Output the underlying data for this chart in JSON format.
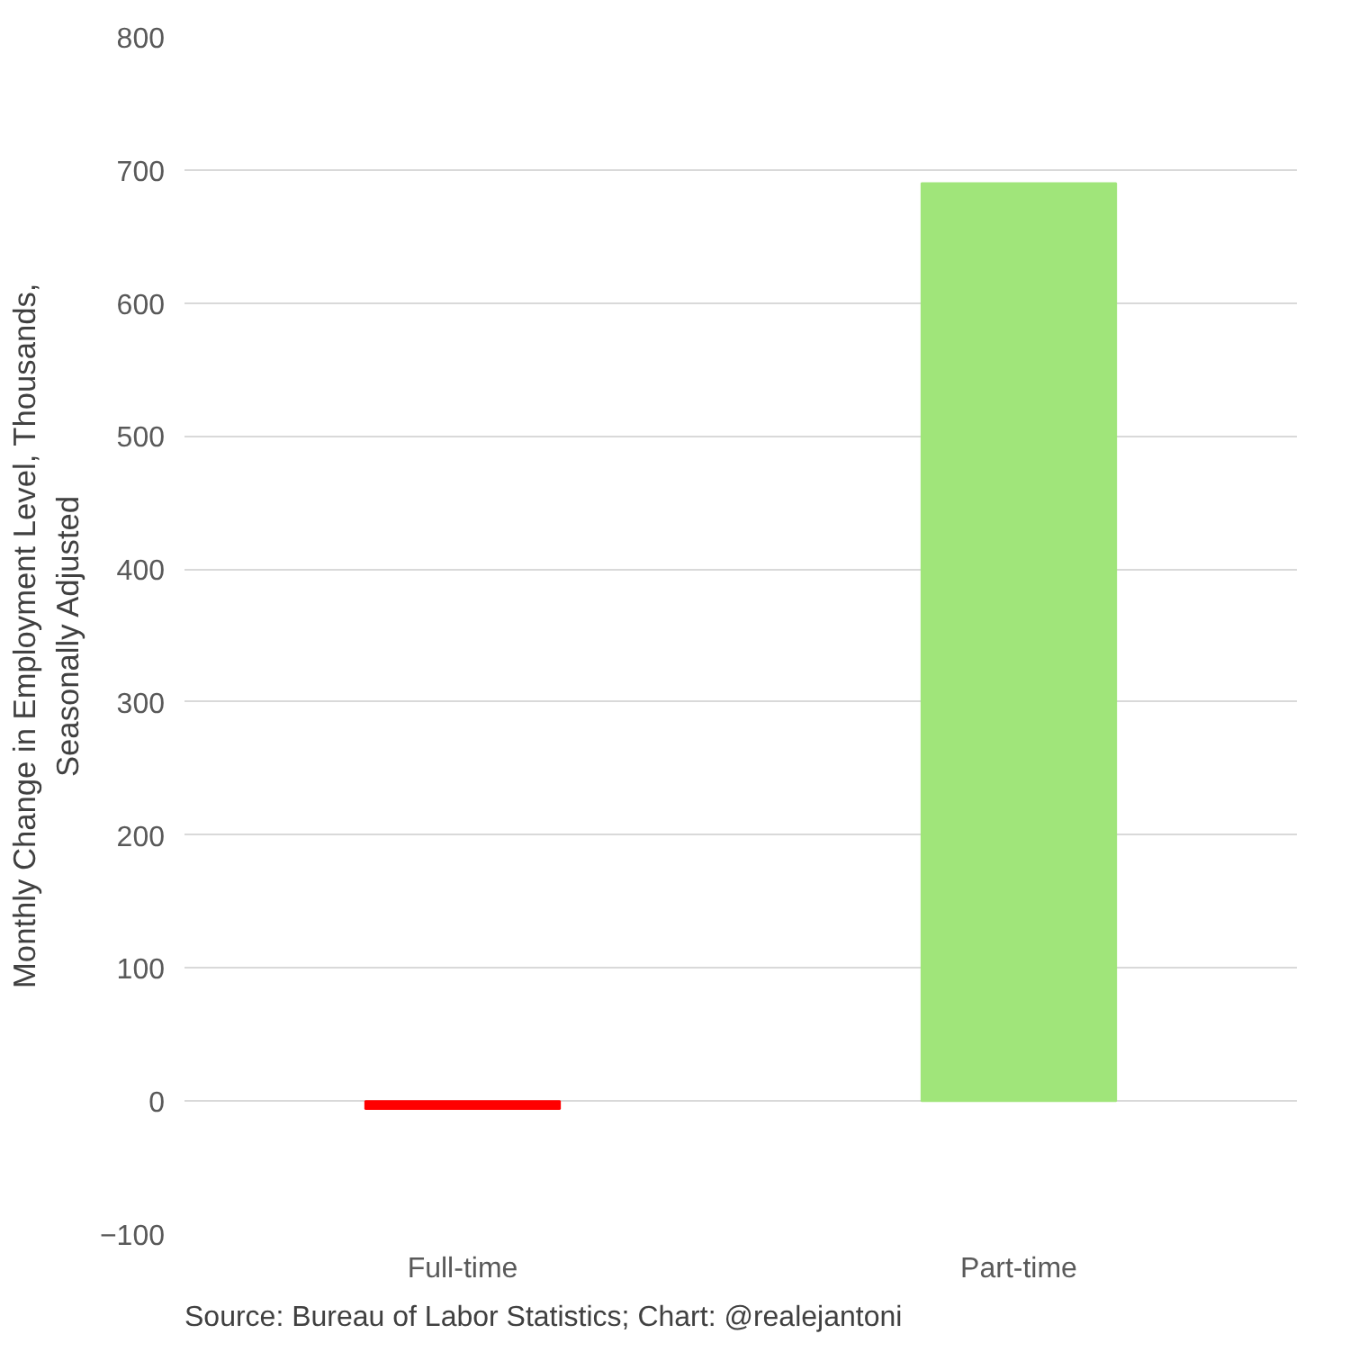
{
  "chart_data": {
    "type": "bar",
    "categories": [
      "Full-time",
      "Part-time"
    ],
    "values": [
      -6,
      690
    ],
    "colors": [
      "#ff0000",
      "#a0e57a"
    ],
    "ylabel": "Monthly Change in Employment Level, Thousands, Seasonally Adjusted",
    "ylim": [
      -100,
      800
    ],
    "yticks": [
      -100,
      0,
      100,
      200,
      300,
      400,
      500,
      600,
      700,
      800
    ],
    "grid": "y",
    "annotations": [
      "Source: Bureau of Labor Statistics; Chart: @realejantoni"
    ]
  }
}
